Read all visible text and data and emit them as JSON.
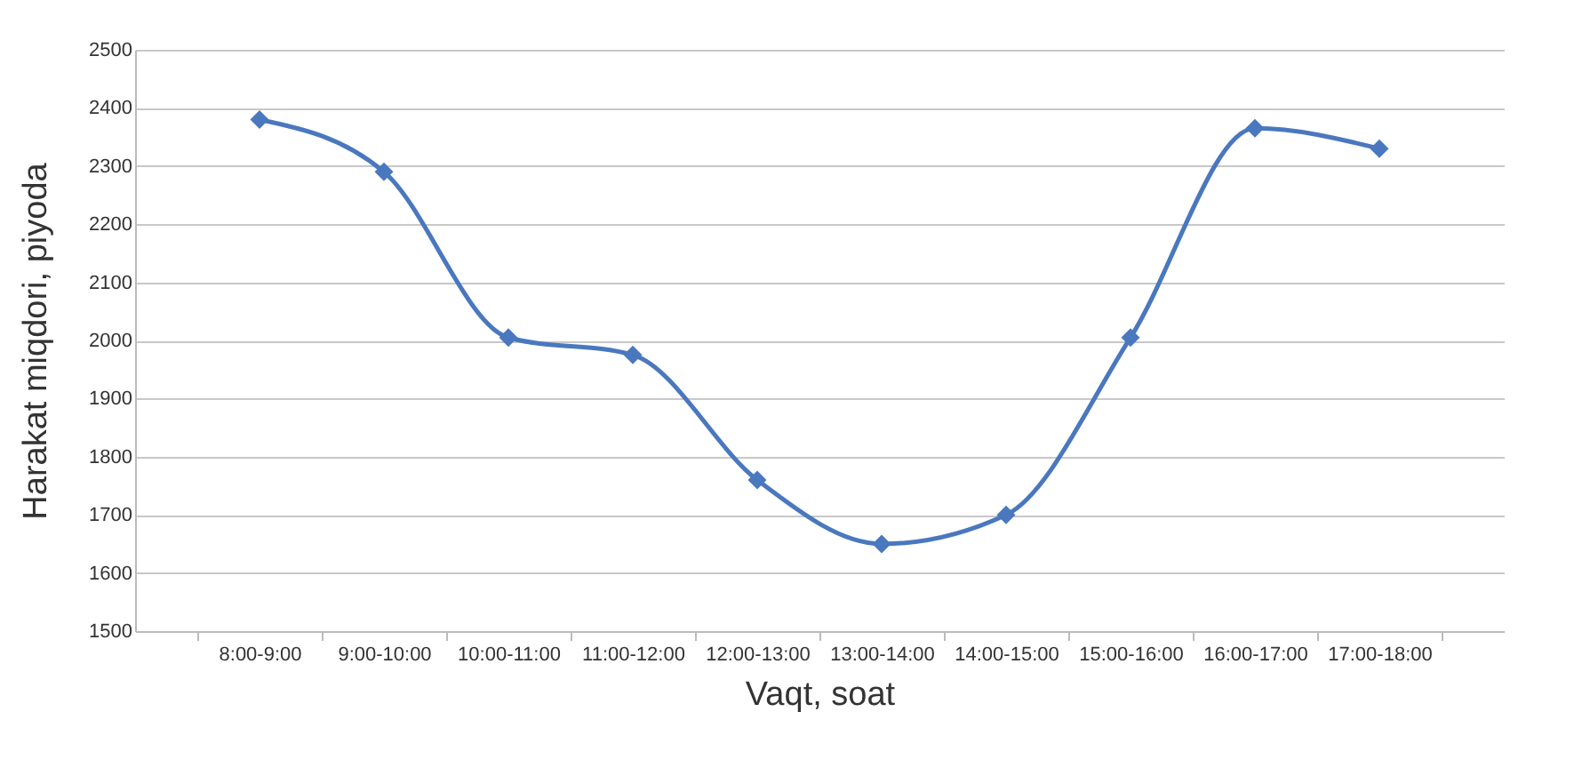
{
  "chart_data": {
    "type": "line",
    "xlabel": "Vaqt, soat",
    "ylabel": "Harakat miqdori, piyoda",
    "categories": [
      "8:00-9:00",
      "9:00-10:00",
      "10:00-11:00",
      "11:00-12:00",
      "12:00-13:00",
      "13:00-14:00",
      "14:00-15:00",
      "15:00-16:00",
      "16:00-17:00",
      "17:00-18:00"
    ],
    "series": [
      {
        "color": "#4a78be",
        "values": [
          2380,
          2290,
          2005,
          1975,
          1760,
          1650,
          1700,
          2005,
          2365,
          2330
        ]
      }
    ],
    "ylim": [
      1500,
      2500
    ],
    "yticks": [
      1500,
      1600,
      1700,
      1800,
      1900,
      2000,
      2100,
      2200,
      2300,
      2400,
      2500
    ],
    "grid": "y",
    "marker": "diamond",
    "line_style": "solid",
    "legend": false
  }
}
